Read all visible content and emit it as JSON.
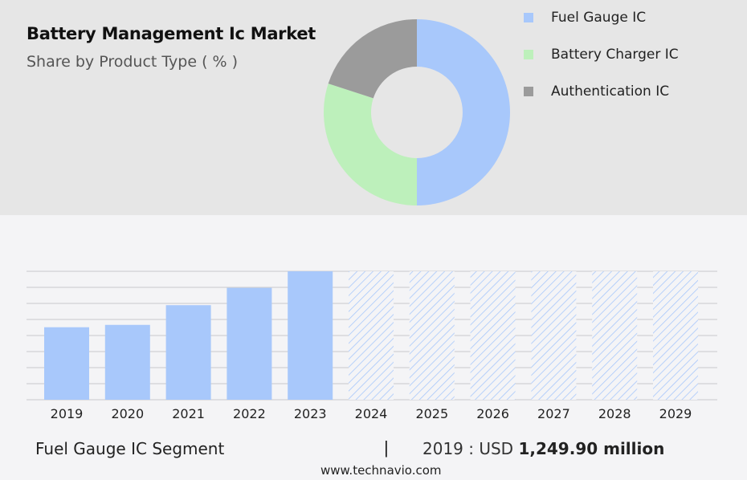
{
  "header": {
    "title": "Battery Management Ic Market",
    "subtitle": "Share by Product Type ( % )"
  },
  "chart_data": [
    {
      "type": "pie",
      "variant": "donut",
      "title": "Battery Management Ic Market",
      "subtitle": "Share by Product Type ( % )",
      "legend_position": "top-right",
      "slices": [
        {
          "name": "Fuel Gauge IC",
          "value": 50,
          "color": "#a8c8fb"
        },
        {
          "name": "Battery Charger IC",
          "value": 30,
          "color": "#bdf0bb"
        },
        {
          "name": "Authentication IC",
          "value": 20,
          "color": "#9b9b9b"
        }
      ]
    },
    {
      "type": "bar",
      "series_name": "Fuel Gauge IC Segment",
      "categories": [
        "2019",
        "2020",
        "2021",
        "2022",
        "2023",
        "2024",
        "2025",
        "2026",
        "2027",
        "2028",
        "2029"
      ],
      "values": [
        46,
        47.5,
        60,
        71,
        81.5,
        null,
        null,
        null,
        null,
        null,
        null
      ],
      "forecast_categories": [
        "2024",
        "2025",
        "2026",
        "2027",
        "2028",
        "2029"
      ],
      "ylim": [
        0,
        100
      ],
      "grid": true,
      "colors": {
        "actual": "#a8c8fb",
        "forecast_hatch": "#a8c8fb"
      }
    }
  ],
  "footer": {
    "segment": "Fuel Gauge IC Segment",
    "divider": "|",
    "value_prefix": "2019 : USD",
    "value_bold": "1,249.90 million"
  },
  "source": "www.technavio.com"
}
